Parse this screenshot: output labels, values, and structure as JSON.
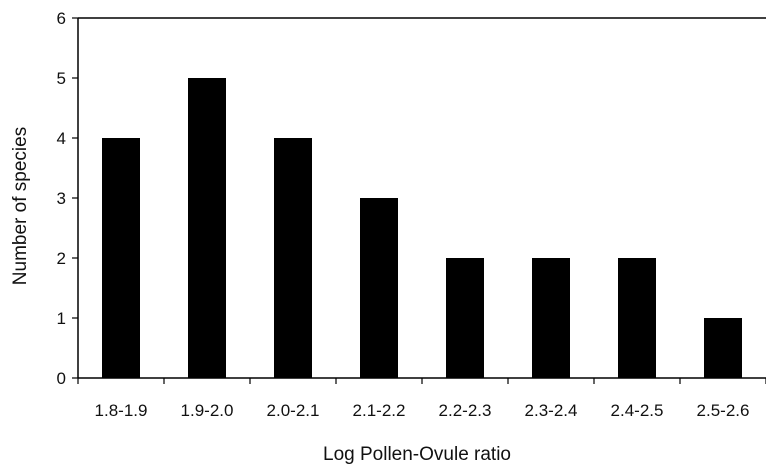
{
  "chart_data": {
    "type": "bar",
    "title": "",
    "xlabel": "Log Pollen-Ovule ratio",
    "ylabel": "Number of species",
    "categories": [
      "1.8-1.9",
      "1.9-2.0",
      "2.0-2.1",
      "2.1-2.2",
      "2.2-2.3",
      "2.3-2.4",
      "2.4-2.5",
      "2.5-2.6"
    ],
    "values": [
      4,
      5,
      4,
      3,
      2,
      2,
      2,
      1
    ],
    "ylim": [
      0,
      6
    ],
    "yticks": [
      "0",
      "1",
      "2",
      "3",
      "4",
      "5",
      "6"
    ],
    "grid": false,
    "legend": "none",
    "bar_color": "#000000"
  }
}
